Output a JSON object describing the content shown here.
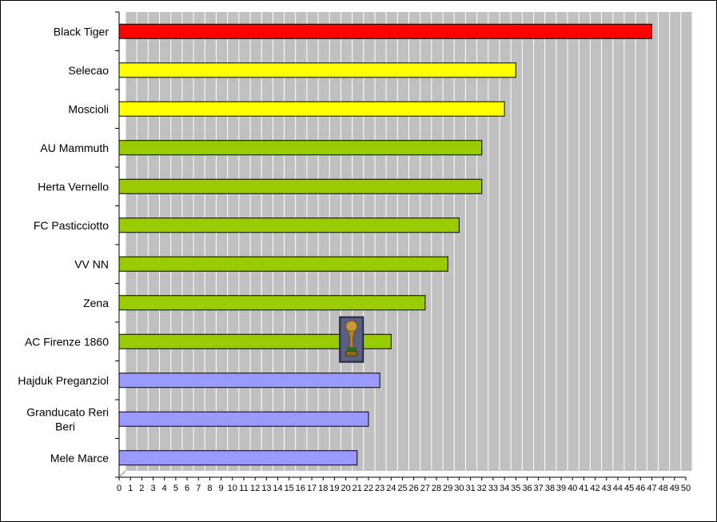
{
  "chart_data": {
    "type": "bar",
    "orientation": "horizontal",
    "title": "",
    "xlabel": "",
    "ylabel": "",
    "xlim": [
      0,
      50
    ],
    "grid": true,
    "legend": "none",
    "categories": [
      "Black Tiger",
      "Selecao",
      "Moscioli",
      "AU Mammuth",
      "Herta Vernello",
      "FC Pasticciotto",
      "VV NN",
      "Zena",
      "AC Firenze 1860",
      "Hajduk Preganziol",
      "Granducato Reri Beri",
      "Mele Marce"
    ],
    "values": [
      47,
      35,
      34,
      32,
      32,
      30,
      29,
      27,
      24,
      23,
      22,
      21
    ],
    "bar_colors": [
      "#ff0000",
      "#ffff00",
      "#ffff00",
      "#99cc00",
      "#99cc00",
      "#99cc00",
      "#99cc00",
      "#99cc00",
      "#99cc00",
      "#9999ff",
      "#9999ff",
      "#9999ff"
    ],
    "x_ticks": [
      "0",
      "1",
      "2",
      "3",
      "4",
      "5",
      "6",
      "7",
      "8",
      "9",
      "10",
      "11",
      "12",
      "13",
      "14",
      "15",
      "16",
      "17",
      "18",
      "19",
      "20",
      "21",
      "22",
      "23",
      "24",
      "25",
      "26",
      "27",
      "28",
      "29",
      "30",
      "31",
      "32",
      "33",
      "34",
      "35",
      "36",
      "37",
      "38",
      "39",
      "40",
      "41",
      "42",
      "43",
      "44",
      "45",
      "46",
      "47",
      "48",
      "49",
      "50"
    ],
    "annotations": [
      {
        "kind": "icon",
        "icon": "world-cup-trophy-icon",
        "category": "AC Firenze 1860",
        "at_value": 20.5
      }
    ]
  },
  "colors": {
    "plot_background": "#c0c0c0",
    "gridline": "#ffffff",
    "bar_outline": "#000000"
  }
}
